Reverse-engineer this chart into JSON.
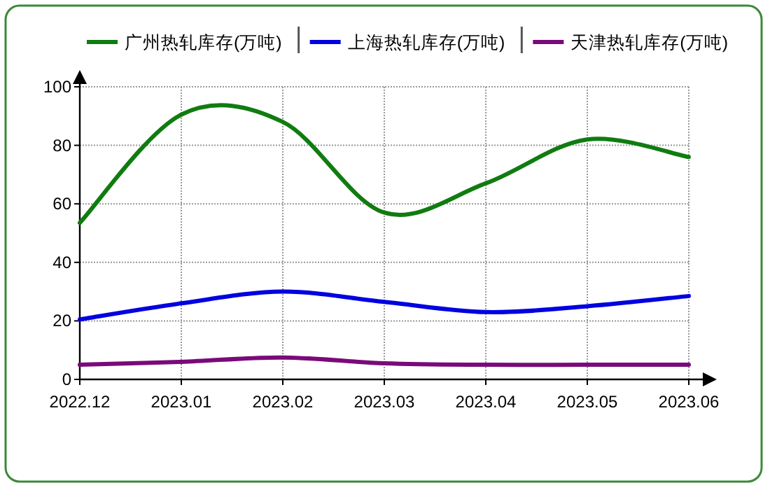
{
  "chart_data": {
    "type": "line",
    "categories": [
      "2022.12",
      "2023.01",
      "2023.02",
      "2023.03",
      "2023.04",
      "2023.05",
      "2023.06"
    ],
    "series": [
      {
        "name": "广州热轧库存(万吨)",
        "color": "#107c10",
        "values": [
          53.5,
          90.5,
          88,
          57,
          67,
          82,
          76
        ]
      },
      {
        "name": "上海热轧库存(万吨)",
        "color": "#0000e0",
        "values": [
          20.5,
          26,
          30,
          26.5,
          23,
          25,
          28.5
        ]
      },
      {
        "name": "天津热轧库存(万吨)",
        "color": "#7a0a7a",
        "values": [
          5,
          6,
          7.5,
          5.5,
          5,
          5,
          5
        ]
      }
    ],
    "ylim": [
      0,
      100
    ],
    "yticks": [
      0,
      20,
      40,
      60,
      80,
      100
    ],
    "grid": true,
    "legend": "top",
    "marker": "none",
    "line_style": "solid"
  }
}
